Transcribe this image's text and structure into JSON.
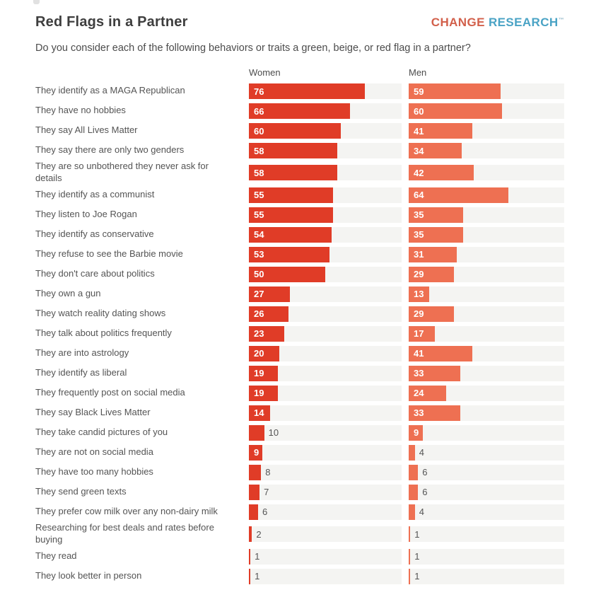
{
  "header": {
    "title": "Red Flags in a Partner",
    "subtitle": "Do you consider each of the following behaviors or traits a green, beige, or red flag in a partner?",
    "logo": {
      "word1": "CHANGE",
      "word2": "RESEARCH",
      "tm": "™",
      "word1_color": "#d2604b",
      "word2_color": "#4aa3c5"
    }
  },
  "chart_data": {
    "type": "bar",
    "orientation": "horizontal",
    "axis_max": 100,
    "grid": false,
    "legend_position": "column-headers",
    "column_headers": [
      "Women",
      "Men"
    ],
    "track_color": "#f4f4f2",
    "categories": [
      "They identify as a MAGA Republican",
      "They have no hobbies",
      "They say All Lives Matter",
      "They say there are only two genders",
      "They are so unbothered they never ask for details",
      "They identify as a communist",
      "They listen to Joe Rogan",
      "They identify as conservative",
      "They refuse to see the Barbie movie",
      "They don't care about politics",
      "They own a gun",
      "They watch reality dating shows",
      "They talk about politics frequently",
      "They are into astrology",
      "They identify as liberal",
      "They frequently post on social media",
      "They say Black Lives Matter",
      "They take candid pictures of you",
      "They are not on social media",
      "They have too many hobbies",
      "They send green texts",
      "They prefer cow milk over any non-dairy milk",
      "Researching for best deals and rates before buying",
      "They read",
      "They look better in person"
    ],
    "series": [
      {
        "name": "Women",
        "color": "#e03c27",
        "values": [
          76,
          66,
          60,
          58,
          58,
          55,
          55,
          54,
          53,
          50,
          27,
          26,
          23,
          20,
          19,
          19,
          14,
          10,
          9,
          8,
          7,
          6,
          2,
          1,
          1
        ],
        "value_label_inside": [
          true,
          true,
          true,
          true,
          true,
          true,
          true,
          true,
          true,
          true,
          true,
          true,
          true,
          true,
          true,
          true,
          true,
          false,
          true,
          false,
          false,
          false,
          false,
          false,
          false
        ]
      },
      {
        "name": "Men",
        "color": "#ee7052",
        "values": [
          59,
          60,
          41,
          34,
          42,
          64,
          35,
          35,
          31,
          29,
          13,
          29,
          17,
          41,
          33,
          24,
          33,
          9,
          4,
          6,
          6,
          4,
          1,
          1,
          1
        ],
        "value_label_inside": [
          true,
          true,
          true,
          true,
          true,
          true,
          true,
          true,
          true,
          true,
          true,
          true,
          true,
          true,
          true,
          true,
          true,
          true,
          false,
          false,
          false,
          false,
          false,
          false,
          false
        ]
      }
    ]
  }
}
